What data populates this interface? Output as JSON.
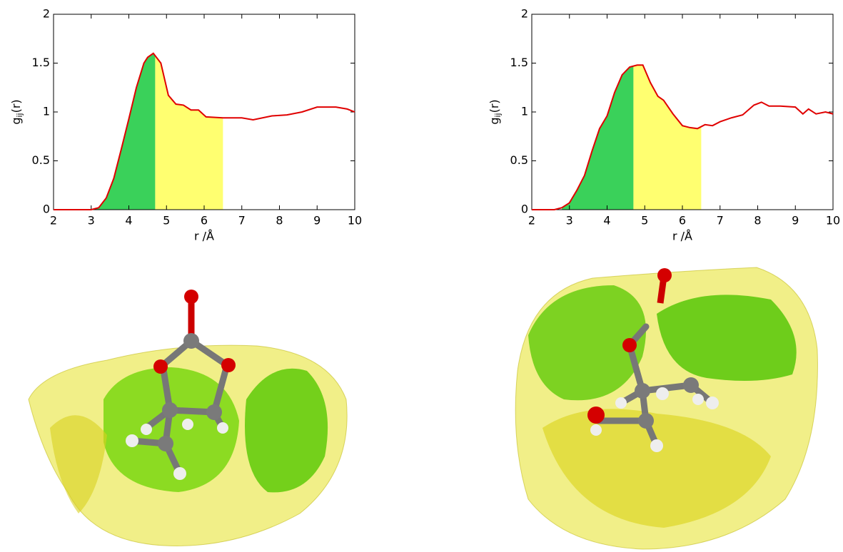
{
  "chart_data": [
    {
      "type": "line",
      "xlabel": "r /Å",
      "ylabel_base": "g",
      "ylabel_sub": "ij",
      "ylabel_rest": "(r)",
      "xlim": [
        2,
        10
      ],
      "ylim": [
        0,
        2
      ],
      "xticks": [
        2,
        3,
        4,
        5,
        6,
        7,
        8,
        9,
        10
      ],
      "yticks": [
        0,
        0.5,
        1,
        1.5,
        2
      ],
      "series": [
        {
          "color": "#e00000",
          "x": [
            2,
            3,
            3.2,
            3.4,
            3.6,
            3.8,
            4.0,
            4.2,
            4.4,
            4.5,
            4.65,
            4.85,
            5.05,
            5.25,
            5.45,
            5.65,
            5.85,
            6.05,
            6.5,
            7.0,
            7.3,
            7.8,
            8.2,
            8.6,
            9.0,
            9.5,
            9.8,
            10
          ],
          "values": [
            0,
            0,
            0.02,
            0.12,
            0.32,
            0.62,
            0.93,
            1.25,
            1.5,
            1.56,
            1.6,
            1.5,
            1.17,
            1.08,
            1.07,
            1.02,
            1.02,
            0.95,
            0.94,
            0.94,
            0.92,
            0.96,
            0.97,
            1.0,
            1.05,
            1.05,
            1.03,
            1.0
          ]
        }
      ],
      "shaded_regions": [
        {
          "from": 3.0,
          "to": 4.7,
          "color": "#3ad15a"
        },
        {
          "from": 4.7,
          "to": 6.5,
          "color": "#ffff70"
        }
      ]
    },
    {
      "type": "line",
      "xlabel": "r /Å",
      "ylabel_base": "g",
      "ylabel_sub": "ij",
      "ylabel_rest": "(r)",
      "xlim": [
        2,
        10
      ],
      "ylim": [
        0,
        2
      ],
      "xticks": [
        2,
        3,
        4,
        5,
        6,
        7,
        8,
        9,
        10
      ],
      "yticks": [
        0,
        0.5,
        1,
        1.5,
        2
      ],
      "series": [
        {
          "color": "#e00000",
          "x": [
            2,
            2.6,
            2.8,
            3.0,
            3.2,
            3.4,
            3.6,
            3.8,
            4.0,
            4.2,
            4.4,
            4.6,
            4.8,
            4.95,
            5.15,
            5.35,
            5.5,
            5.75,
            6.0,
            6.2,
            6.4,
            6.6,
            6.8,
            7.0,
            7.3,
            7.6,
            7.9,
            8.1,
            8.3,
            8.6,
            9.0,
            9.2,
            9.35,
            9.55,
            9.8,
            10
          ],
          "values": [
            0,
            0,
            0.02,
            0.07,
            0.2,
            0.35,
            0.6,
            0.83,
            0.96,
            1.2,
            1.38,
            1.46,
            1.48,
            1.48,
            1.3,
            1.16,
            1.12,
            0.98,
            0.86,
            0.84,
            0.83,
            0.87,
            0.86,
            0.9,
            0.94,
            0.97,
            1.07,
            1.1,
            1.06,
            1.06,
            1.05,
            0.98,
            1.03,
            0.98,
            1.0,
            0.98
          ]
        }
      ],
      "shaded_regions": [
        {
          "from": 2.8,
          "to": 4.7,
          "color": "#3ad15a"
        },
        {
          "from": 4.7,
          "to": 6.5,
          "color": "#ffff70"
        }
      ]
    }
  ]
}
